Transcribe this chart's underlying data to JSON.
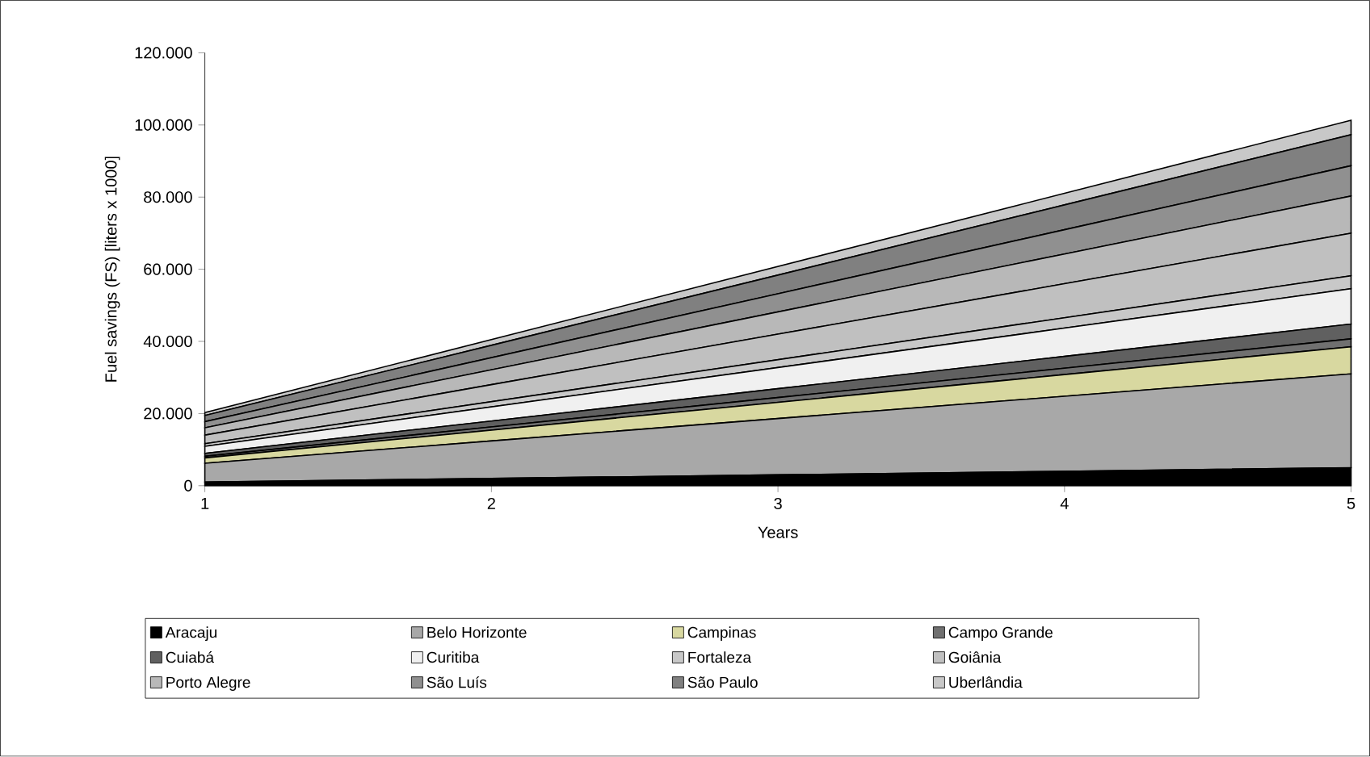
{
  "chart_data": {
    "type": "area",
    "stacked": true,
    "xlabel": "Years",
    "ylabel": "Fuel savings (FS) [liters x 1000]",
    "x": [
      1,
      2,
      3,
      4,
      5
    ],
    "xlim": [
      1,
      5
    ],
    "xticks": [
      1,
      2,
      3,
      4,
      5
    ],
    "ylim": [
      0,
      120000
    ],
    "yticks": [
      {
        "value": 0,
        "label": "0"
      },
      {
        "value": 20000,
        "label": "20.000"
      },
      {
        "value": 40000,
        "label": "40.000"
      },
      {
        "value": 60000,
        "label": "60.000"
      },
      {
        "value": 80000,
        "label": "80.000"
      },
      {
        "value": 100000,
        "label": "100.000"
      },
      {
        "value": 120000,
        "label": "120.000"
      }
    ],
    "legend": "bottom",
    "grid": false,
    "series": [
      {
        "name": "Aracaju",
        "color": "#000000",
        "values": [
          1000,
          2000,
          3000,
          4000,
          5000
        ]
      },
      {
        "name": "Belo Horizonte",
        "color": "#a8a8a8",
        "values": [
          5200,
          10400,
          15600,
          20800,
          26000
        ]
      },
      {
        "name": "Campinas",
        "color": "#d8d8a0",
        "values": [
          1500,
          3000,
          4500,
          6000,
          7500
        ]
      },
      {
        "name": "Campo Grande",
        "color": "#707070",
        "values": [
          440,
          880,
          1320,
          1760,
          2200
        ]
      },
      {
        "name": "Cuiabá",
        "color": "#606060",
        "values": [
          820,
          1640,
          2460,
          3280,
          4100
        ]
      },
      {
        "name": "Curitiba",
        "color": "#f0f0f0",
        "values": [
          1960,
          3920,
          5880,
          7840,
          9800
        ]
      },
      {
        "name": "Fortaleza",
        "color": "#c8c8c8",
        "values": [
          720,
          1440,
          2160,
          2880,
          3600
        ]
      },
      {
        "name": "Goiânia",
        "color": "#c0c0c0",
        "values": [
          2360,
          4720,
          7080,
          9440,
          11800
        ]
      },
      {
        "name": "Porto Alegre",
        "color": "#b8b8b8",
        "values": [
          2060,
          4120,
          6180,
          8240,
          10300
        ]
      },
      {
        "name": "São Luís",
        "color": "#909090",
        "values": [
          1680,
          3360,
          5040,
          6720,
          8400
        ]
      },
      {
        "name": "São Paulo",
        "color": "#808080",
        "values": [
          1720,
          3440,
          5160,
          6880,
          8600
        ]
      },
      {
        "name": "Uberlândia",
        "color": "#c8c8c8",
        "values": [
          800,
          1600,
          2400,
          3200,
          4000
        ]
      }
    ]
  }
}
